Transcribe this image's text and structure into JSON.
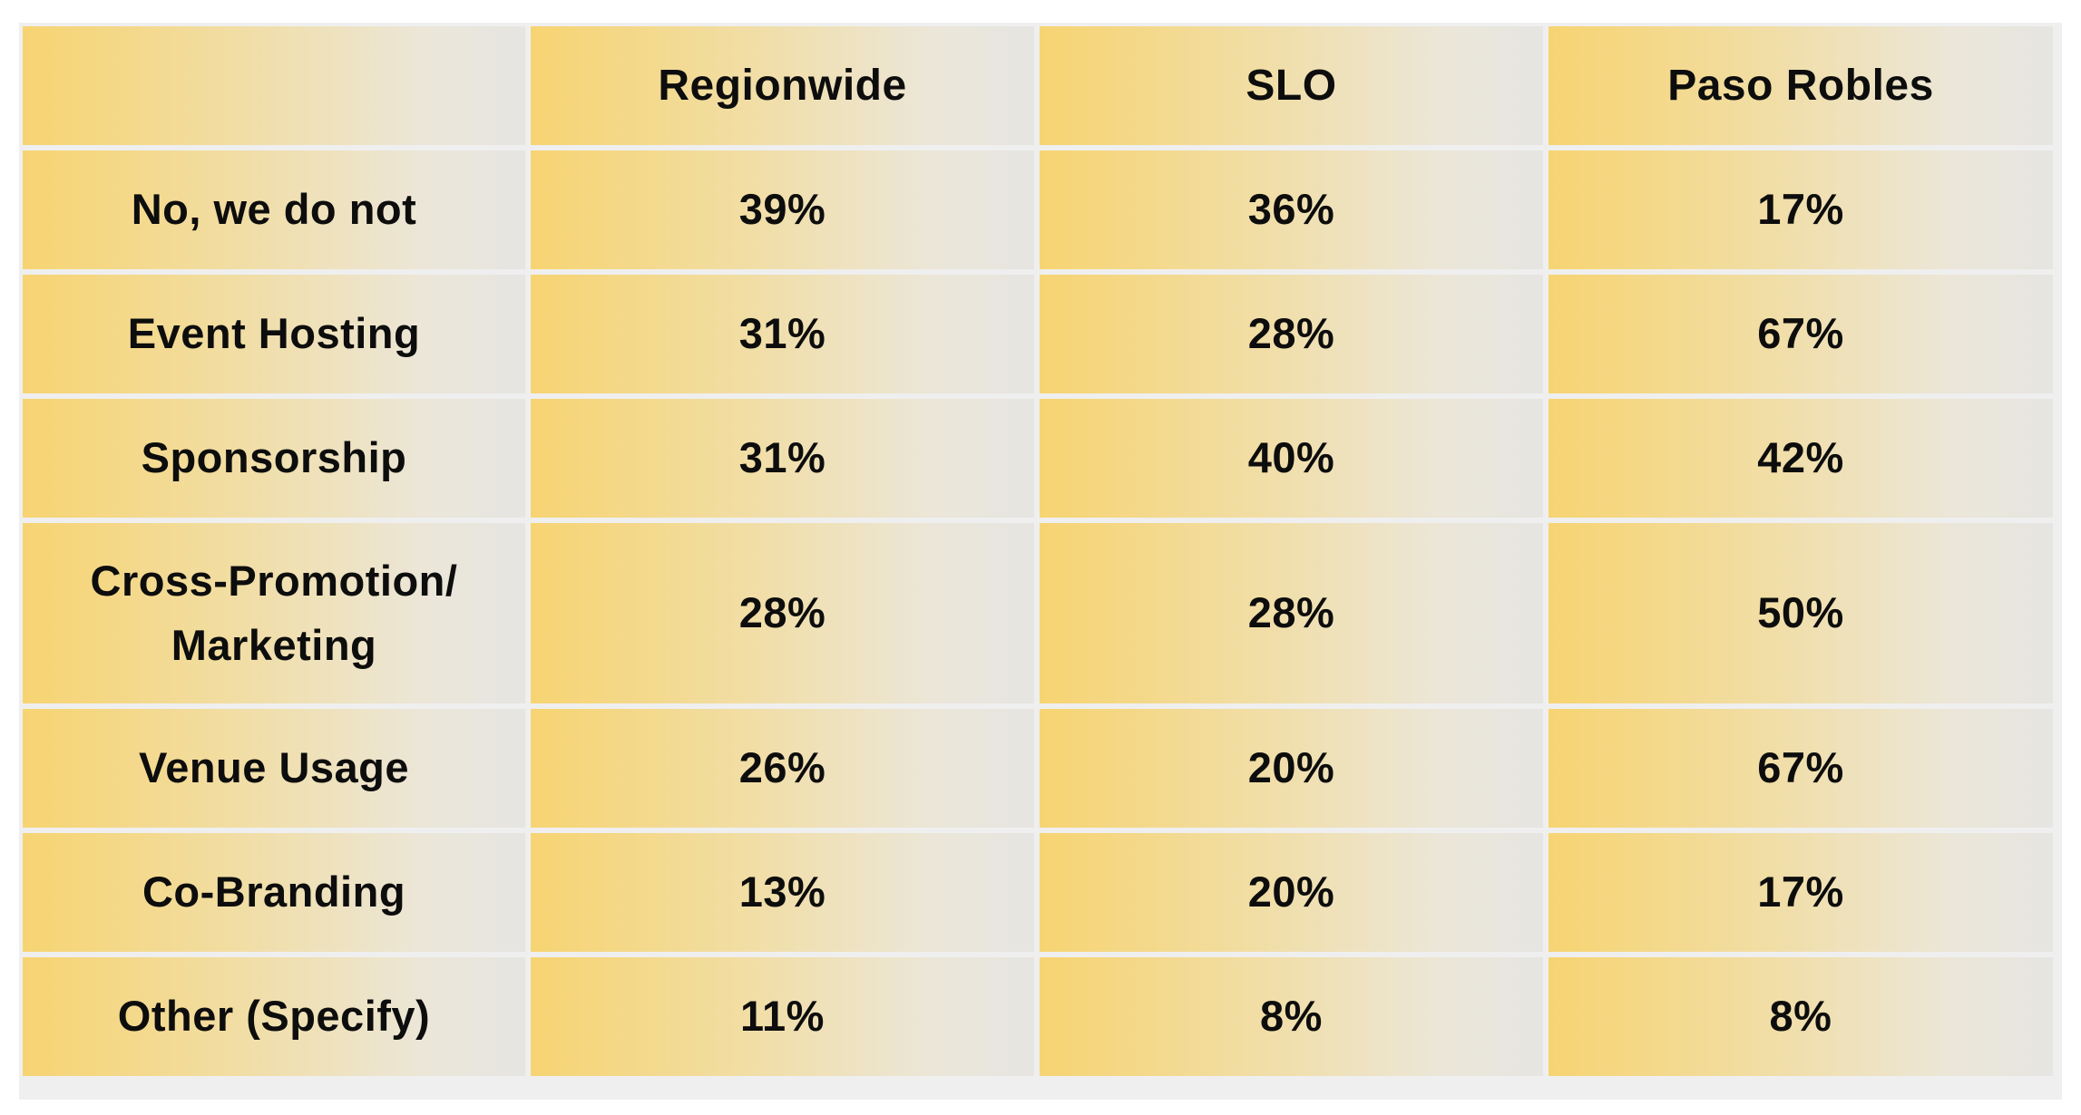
{
  "chart_data": {
    "type": "table",
    "columns": [
      "",
      "Regionwide",
      "SLO",
      "Paso Robles"
    ],
    "rows": [
      {
        "label": "No, we do not",
        "values": [
          "39%",
          "36%",
          "17%"
        ]
      },
      {
        "label": "Event Hosting",
        "values": [
          "31%",
          "28%",
          "67%"
        ]
      },
      {
        "label": "Sponsorship",
        "values": [
          "31%",
          "40%",
          "42%"
        ]
      },
      {
        "label": "Cross-Promotion/ Marketing",
        "values": [
          "28%",
          "28%",
          "50%"
        ]
      },
      {
        "label": "Venue Usage",
        "values": [
          "26%",
          "20%",
          "67%"
        ]
      },
      {
        "label": "Co-Branding",
        "values": [
          "13%",
          "20%",
          "17%"
        ]
      },
      {
        "label": "Other (Specify)",
        "values": [
          "11%",
          "8%",
          "8%"
        ]
      }
    ]
  },
  "colors": {
    "cell_gradient_start": "#f7d472",
    "cell_gradient_end": "#e6e5e2",
    "grid_line": "#efefef",
    "text": "#0d0d0d"
  }
}
